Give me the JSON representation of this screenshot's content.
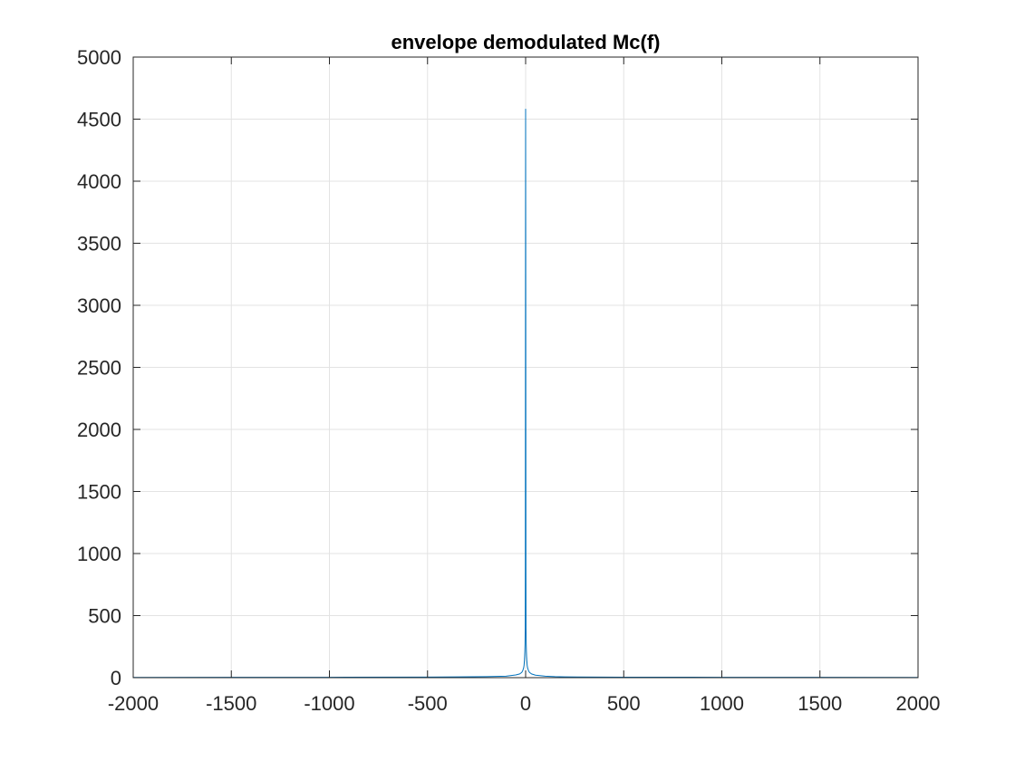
{
  "chart_data": {
    "type": "line",
    "title": "envelope demodulated Mc(f)",
    "xlabel": "",
    "ylabel": "",
    "xlim": [
      -2000,
      2000
    ],
    "ylim": [
      0,
      5000
    ],
    "xticks": [
      -2000,
      -1500,
      -1000,
      -500,
      0,
      500,
      1000,
      1500,
      2000
    ],
    "xtick_labels": [
      "-2000",
      "-1500",
      "-1000",
      "-500",
      "0",
      "500",
      "1000",
      "1500",
      "2000"
    ],
    "yticks": [
      0,
      500,
      1000,
      1500,
      2000,
      2500,
      3000,
      3500,
      4000,
      4500,
      5000
    ],
    "ytick_labels": [
      "0",
      "500",
      "1000",
      "1500",
      "2000",
      "2500",
      "3000",
      "3500",
      "4000",
      "4500",
      "5000"
    ],
    "grid": true,
    "legend": "none",
    "colors": {
      "line": "#0072BD",
      "axes": "#262626",
      "grid": "#E3E3E3"
    },
    "series": [
      {
        "x": [
          -2000,
          -1000,
          -500,
          -200,
          -100,
          -50,
          -30,
          -20,
          -15,
          -10,
          -8,
          -6,
          -5,
          -4,
          -3,
          -2,
          -1.5,
          -1,
          -0.5,
          0,
          0.5,
          1,
          1.5,
          2,
          3,
          4,
          5,
          6,
          8,
          10,
          15,
          20,
          30,
          50,
          100,
          150,
          200,
          500,
          1000,
          2000
        ],
        "y": [
          2,
          3,
          5,
          8,
          12,
          22,
          30,
          42,
          55,
          80,
          100,
          140,
          170,
          210,
          270,
          400,
          900,
          2200,
          3600,
          4580,
          3600,
          2200,
          900,
          400,
          270,
          210,
          170,
          140,
          100,
          80,
          55,
          42,
          30,
          20,
          12,
          8,
          6,
          4,
          3,
          2
        ]
      }
    ]
  }
}
